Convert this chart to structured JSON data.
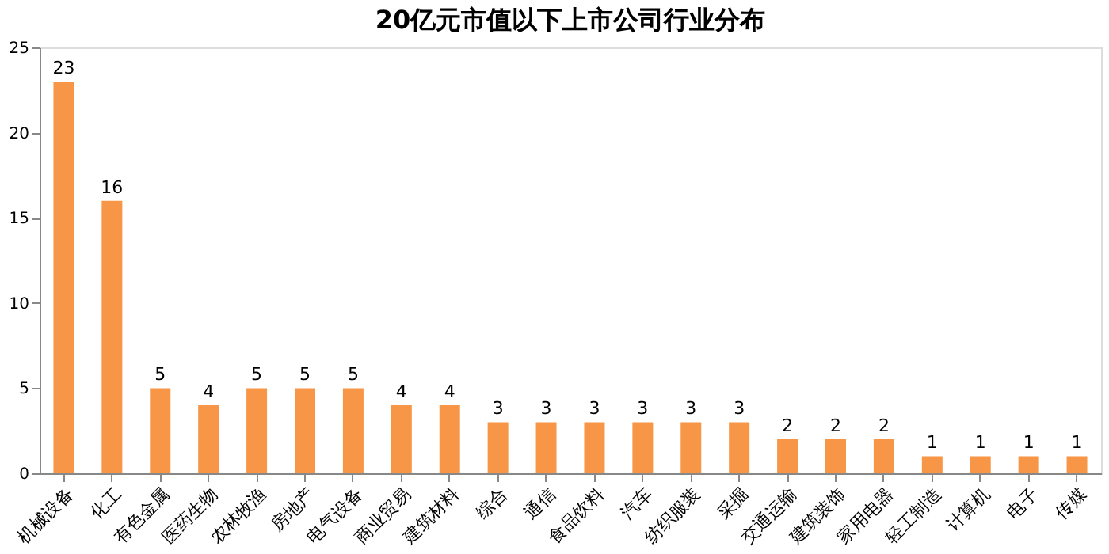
{
  "chart_data": {
    "type": "bar",
    "title": "20亿元市值以下上市公司行业分布",
    "categories": [
      "机械设备",
      "化工",
      "有色金属",
      "医药生物",
      "农林牧渔",
      "房地产",
      "电气设备",
      "商业贸易",
      "建筑材料",
      "综合",
      "通信",
      "食品饮料",
      "汽车",
      "纺织服装",
      "采掘",
      "交通运输",
      "建筑装饰",
      "家用电器",
      "轻工制造",
      "计算机",
      "电子",
      "传媒"
    ],
    "values": [
      23,
      16,
      5,
      4,
      5,
      5,
      5,
      4,
      4,
      3,
      3,
      3,
      3,
      3,
      3,
      2,
      2,
      2,
      1,
      1,
      1,
      1
    ],
    "color": "#f79646",
    "ylim": [
      0,
      25
    ],
    "yticks": [
      0,
      5,
      10,
      15,
      20,
      25
    ],
    "grid": false,
    "data_labels": true
  }
}
